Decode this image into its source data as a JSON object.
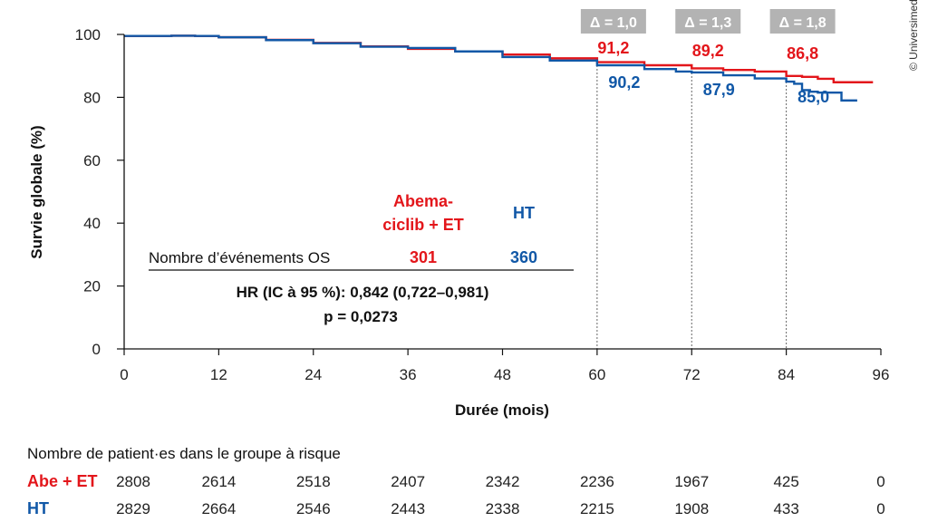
{
  "chart_data": {
    "type": "line",
    "title": "",
    "xlabel": "Durée (mois)",
    "ylabel": "Survie globale (%)",
    "xlim": [
      0,
      96
    ],
    "ylim": [
      0,
      100
    ],
    "xticks": [
      0,
      12,
      24,
      36,
      48,
      60,
      72,
      84,
      96
    ],
    "yticks": [
      0,
      20,
      40,
      60,
      80,
      100
    ],
    "series": [
      {
        "name": "Abe + ET",
        "color": "#e3161b",
        "x": [
          0,
          6,
          9,
          12,
          18,
          24,
          30,
          36,
          42,
          48,
          54,
          60,
          66,
          72,
          76,
          80,
          84,
          86,
          88,
          90,
          92,
          95
        ],
        "y": [
          99.5,
          99.6,
          99.5,
          99.1,
          98.3,
          97.3,
          96.2,
          95.4,
          94.6,
          93.6,
          92.4,
          91.2,
          90.2,
          89.2,
          88.7,
          88.2,
          86.8,
          86.5,
          85.9,
          84.8,
          84.8,
          84.8
        ]
      },
      {
        "name": "HT",
        "color": "#1158a7",
        "x": [
          0,
          6,
          9,
          12,
          18,
          24,
          30,
          36,
          42,
          48,
          54,
          60,
          66,
          70,
          72,
          76,
          80,
          84,
          85,
          86,
          87,
          88,
          90,
          91,
          93
        ],
        "y": [
          99.5,
          99.6,
          99.5,
          99.1,
          98.2,
          97.2,
          96.1,
          95.7,
          94.6,
          92.8,
          91.7,
          90.2,
          89.0,
          88.2,
          87.9,
          87.0,
          86.0,
          85.0,
          84.3,
          82.3,
          81.8,
          81.5,
          81.5,
          79.0,
          79.0
        ]
      }
    ],
    "timepoints": [
      {
        "month": 60,
        "delta": "Δ = 1,0",
        "abe": "91,2",
        "ht": "90,2"
      },
      {
        "month": 72,
        "delta": "Δ = 1,3",
        "abe": "89,2",
        "ht": "87,9"
      },
      {
        "month": 84,
        "delta": "Δ = 1,8",
        "abe": "86,8",
        "ht": "85,0"
      }
    ],
    "annotations": {
      "col_abe": "Abema-ciclib + ET",
      "col_abe_line1": "Abema-",
      "col_abe_line2": "ciclib + ET",
      "col_ht": "HT",
      "events_label": "Nombre d’événements OS",
      "events_abe": "301",
      "events_ht": "360",
      "hr_text": "HR (IC à 95 %): 0,842 (0,722–0,981)",
      "p_text": "p = 0,0273"
    }
  },
  "risk_table": {
    "title": "Nombre de patient·es dans le groupe à risque",
    "rows": [
      {
        "label": "Abe + ET",
        "color": "#e3161b",
        "values": [
          "2808",
          "2614",
          "2518",
          "2407",
          "2342",
          "2236",
          "1967",
          "425",
          "0"
        ]
      },
      {
        "label": "HT",
        "color": "#1158a7",
        "values": [
          "2829",
          "2664",
          "2546",
          "2443",
          "2338",
          "2215",
          "1908",
          "433",
          "0"
        ]
      }
    ]
  },
  "copyright": "© Universimed",
  "colors": {
    "abe": "#e3161b",
    "ht": "#1158a7",
    "delta_box": "#b3b3b3"
  }
}
